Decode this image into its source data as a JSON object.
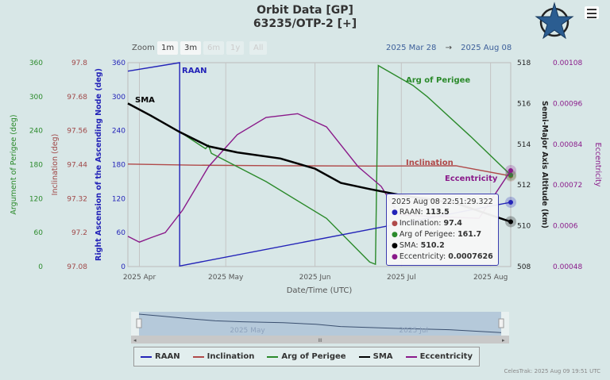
{
  "header": {
    "title": "Orbit Data [GP]",
    "subtitle": "63235/OTP-2 [+]",
    "menu_icon": "hamburger-menu-icon",
    "logo": "celestrak-star-logo"
  },
  "zoom": {
    "label": "Zoom",
    "buttons": [
      {
        "label": "1m",
        "enabled": true
      },
      {
        "label": "3m",
        "enabled": true
      },
      {
        "label": "6m",
        "enabled": false
      },
      {
        "label": "1y",
        "enabled": false
      },
      {
        "label": "All",
        "enabled": false
      }
    ]
  },
  "range": {
    "from": "2025 Mar 28",
    "arrow": "→",
    "to": "2025 Aug 08"
  },
  "tooltip": {
    "time": "2025 Aug 08 22:51:29.322",
    "rows": [
      {
        "label": "RAAN:",
        "value": "113.5",
        "color": "#2323b8"
      },
      {
        "label": "Inclination:",
        "value": "97.4",
        "color": "#b04a4a"
      },
      {
        "label": "Arg of Perigee:",
        "value": "161.7",
        "color": "#2b8a2b"
      },
      {
        "label": "SMA:",
        "value": "510.2",
        "color": "#000000"
      },
      {
        "label": "Eccentricity:",
        "value": "0.0007626",
        "color": "#8a1a8a"
      }
    ]
  },
  "navigator": {
    "labels": [
      "2025 May",
      "2025 Jul"
    ],
    "scrollbar_grip": "III"
  },
  "legend": [
    {
      "name": "RAAN",
      "color": "#2323b8"
    },
    {
      "name": "Inclination",
      "color": "#b04a4a"
    },
    {
      "name": "Arg of Perigee",
      "color": "#2b8a2b"
    },
    {
      "name": "SMA",
      "color": "#000000"
    },
    {
      "name": "Eccentricity",
      "color": "#8a1a8a"
    }
  ],
  "credit": "CelesTrak: 2025 Aug 09 19:51 UTC",
  "chart_data": {
    "type": "line",
    "xlabel": "Date/Time (UTC)",
    "xlim": [
      "2025-03-28",
      "2025-08-08"
    ],
    "xticks": [
      {
        "date": "2025-04-01",
        "label": "2025 Apr"
      },
      {
        "date": "2025-05-01",
        "label": "2025 May"
      },
      {
        "date": "2025-06-01",
        "label": "2025 Jun"
      },
      {
        "date": "2025-07-01",
        "label": "2025 Jul"
      },
      {
        "date": "2025-08-01",
        "label": "2025 Aug"
      }
    ],
    "grid": true,
    "axes": [
      {
        "id": "aop",
        "title": "Argument of Perigee (deg)",
        "side": "left",
        "ylim": [
          0,
          360
        ],
        "ticks": [
          "0",
          "60",
          "120",
          "180",
          "240",
          "300",
          "360"
        ],
        "color": "#2b8a2b"
      },
      {
        "id": "inc",
        "title": "Inclination (deg)",
        "side": "left",
        "ylim": [
          97.08,
          97.8
        ],
        "ticks": [
          "97.08",
          "97.2",
          "97.32",
          "97.44",
          "97.56",
          "97.68",
          "97.8"
        ],
        "color": "#a04848"
      },
      {
        "id": "raan",
        "title": "Right Ascension of the Ascending Node (deg)",
        "side": "left",
        "ylim": [
          0,
          360
        ],
        "ticks": [
          "0",
          "60",
          "120",
          "180",
          "240",
          "300",
          "360"
        ],
        "color": "#2323b8"
      },
      {
        "id": "sma",
        "title": "Semi-Major Axis Altitude (km)",
        "side": "right",
        "ylim": [
          508,
          518
        ],
        "ticks": [
          "508",
          "510",
          "512",
          "514",
          "516",
          "518"
        ],
        "color": "#222222"
      },
      {
        "id": "ecc",
        "title": "Eccentricity",
        "side": "right",
        "ylim": [
          0.00048,
          0.00108
        ],
        "ticks": [
          "0.00048",
          "0.0006",
          "0.00072",
          "0.00084",
          "0.00096",
          "0.00108"
        ],
        "color": "#8a1a8a"
      }
    ],
    "series": [
      {
        "name": "RAAN",
        "axis": "raan",
        "color": "#2323b8",
        "label": "RAAN",
        "points": [
          [
            "2025-03-28",
            345
          ],
          [
            "2025-04-15",
            360
          ],
          [
            "2025-04-15",
            1
          ],
          [
            "2025-08-08",
            113.5
          ]
        ]
      },
      {
        "name": "Inclination",
        "axis": "inc",
        "color": "#b04a4a",
        "label": "Inclination",
        "points": [
          [
            "2025-03-28",
            97.442
          ],
          [
            "2025-04-20",
            97.438
          ],
          [
            "2025-05-20",
            97.436
          ],
          [
            "2025-06-20",
            97.435
          ],
          [
            "2025-07-20",
            97.436
          ],
          [
            "2025-08-08",
            97.4
          ]
        ]
      },
      {
        "name": "Arg of Perigee",
        "axis": "aop",
        "color": "#2b8a2b",
        "label": "Arg of Perigee",
        "points": [
          [
            "2025-03-28",
            288
          ],
          [
            "2025-04-15",
            238
          ],
          [
            "2025-04-24",
            208
          ],
          [
            "2025-04-25",
            214
          ],
          [
            "2025-04-26",
            200
          ],
          [
            "2025-05-15",
            150
          ],
          [
            "2025-06-05",
            85
          ],
          [
            "2025-06-20",
            8
          ],
          [
            "2025-06-22",
            4
          ],
          [
            "2025-06-23",
            355
          ],
          [
            "2025-07-05",
            320
          ],
          [
            "2025-07-10",
            300
          ],
          [
            "2025-07-25",
            230
          ],
          [
            "2025-08-08",
            161.7
          ]
        ]
      },
      {
        "name": "SMA",
        "axis": "sma",
        "color": "#000000",
        "label": "SMA",
        "points": [
          [
            "2025-03-28",
            516.0
          ],
          [
            "2025-04-05",
            515.4
          ],
          [
            "2025-04-15",
            514.6
          ],
          [
            "2025-04-25",
            513.9
          ],
          [
            "2025-05-05",
            513.6
          ],
          [
            "2025-05-20",
            513.3
          ],
          [
            "2025-06-01",
            512.8
          ],
          [
            "2025-06-10",
            512.1
          ],
          [
            "2025-06-20",
            511.8
          ],
          [
            "2025-07-01",
            511.5
          ],
          [
            "2025-07-20",
            511.1
          ],
          [
            "2025-08-08",
            510.2
          ]
        ]
      },
      {
        "name": "Eccentricity",
        "axis": "ecc",
        "color": "#8a1a8a",
        "label": "Eccentricity",
        "points": [
          [
            "2025-03-28",
            0.000569
          ],
          [
            "2025-04-01",
            0.000552
          ],
          [
            "2025-04-05",
            0.000565
          ],
          [
            "2025-04-10",
            0.00058
          ],
          [
            "2025-04-16",
            0.000646
          ],
          [
            "2025-04-25",
            0.000774
          ],
          [
            "2025-05-05",
            0.000868
          ],
          [
            "2025-05-15",
            0.000919
          ],
          [
            "2025-05-26",
            0.00093
          ],
          [
            "2025-06-05",
            0.000891
          ],
          [
            "2025-06-16",
            0.000774
          ],
          [
            "2025-06-24",
            0.000716
          ],
          [
            "2025-06-30",
            0.000634
          ],
          [
            "2025-07-05",
            0.00063
          ],
          [
            "2025-07-28",
            0.000622
          ],
          [
            "2025-08-08",
            0.0007626
          ]
        ]
      }
    ]
  }
}
